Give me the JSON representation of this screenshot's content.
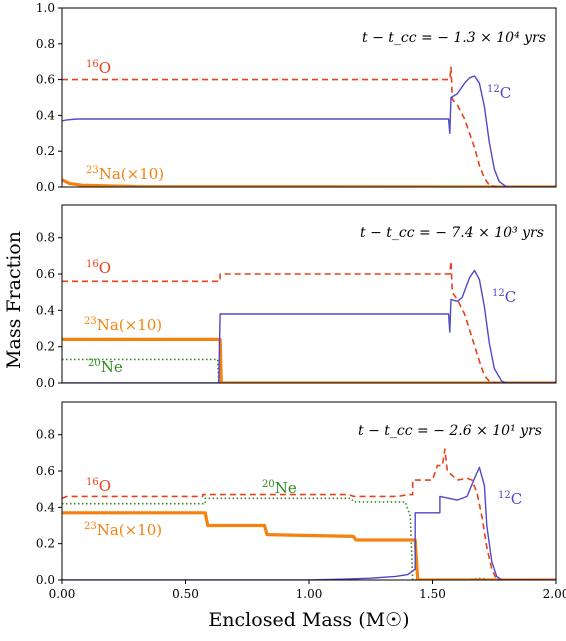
{
  "figure": {
    "ylabel": "Mass Fraction",
    "xlabel": "Enclosed Mass (M☉)"
  },
  "colors": {
    "O16": "#e8411a",
    "C12": "#5148c8",
    "Na23": "#f5820e",
    "Ne20": "#2e8a1e"
  },
  "chart_data": [
    {
      "type": "line",
      "annotation": "t − t_cc = − 1.3 × 10⁴ yrs",
      "xlim": [
        0,
        2.0
      ],
      "ylim": [
        0,
        1.0
      ],
      "yticks": [
        "0.0",
        "0.2",
        "0.4",
        "0.6",
        "0.8",
        "1.0"
      ],
      "grid": false,
      "series": [
        {
          "key": "O16",
          "name": "¹⁶O",
          "style": "dashed",
          "points": [
            [
              0,
              0.6
            ],
            [
              1.57,
              0.6
            ],
            [
              1.575,
              0.67
            ],
            [
              1.58,
              0.49
            ],
            [
              1.6,
              0.46
            ],
            [
              1.63,
              0.38
            ],
            [
              1.65,
              0.3
            ],
            [
              1.67,
              0.22
            ],
            [
              1.69,
              0.12
            ],
            [
              1.71,
              0.05
            ],
            [
              1.73,
              0.01
            ],
            [
              1.76,
              0.0
            ],
            [
              2.0,
              0.0
            ]
          ]
        },
        {
          "key": "C12",
          "name": "¹²C",
          "style": "solid",
          "points": [
            [
              0,
              0.37
            ],
            [
              0.02,
              0.375
            ],
            [
              0.06,
              0.38
            ],
            [
              1.565,
              0.38
            ],
            [
              1.57,
              0.3
            ],
            [
              1.575,
              0.5
            ],
            [
              1.6,
              0.52
            ],
            [
              1.63,
              0.58
            ],
            [
              1.65,
              0.61
            ],
            [
              1.67,
              0.62
            ],
            [
              1.69,
              0.58
            ],
            [
              1.71,
              0.45
            ],
            [
              1.73,
              0.25
            ],
            [
              1.75,
              0.1
            ],
            [
              1.77,
              0.03
            ],
            [
              1.8,
              0.0
            ],
            [
              2.0,
              0.0
            ]
          ]
        },
        {
          "key": "Na23",
          "name": "²³Na(×10)",
          "style": "thick",
          "points": [
            [
              0,
              0.04
            ],
            [
              0.03,
              0.02
            ],
            [
              0.08,
              0.01
            ],
            [
              0.3,
              0.002
            ],
            [
              2.0,
              0.0
            ]
          ]
        }
      ]
    },
    {
      "type": "line",
      "annotation": "t − t_cc = − 7.4 × 10³ yrs",
      "xlim": [
        0,
        2.0
      ],
      "ylim": [
        0,
        0.98
      ],
      "yticks": [
        "0.0",
        "0.2",
        "0.4",
        "0.6",
        "0.8"
      ],
      "grid": false,
      "series": [
        {
          "key": "O16",
          "name": "¹⁶O",
          "style": "dashed",
          "points": [
            [
              0,
              0.56
            ],
            [
              0.64,
              0.56
            ],
            [
              0.64,
              0.6
            ],
            [
              1.57,
              0.6
            ],
            [
              1.575,
              0.67
            ],
            [
              1.58,
              0.5
            ],
            [
              1.6,
              0.46
            ],
            [
              1.63,
              0.38
            ],
            [
              1.66,
              0.25
            ],
            [
              1.69,
              0.12
            ],
            [
              1.71,
              0.04
            ],
            [
              1.73,
              0.01
            ],
            [
              1.76,
              0.0
            ],
            [
              2.0,
              0.0
            ]
          ]
        },
        {
          "key": "C12",
          "name": "¹²C",
          "style": "solid",
          "points": [
            [
              0,
              0.0
            ],
            [
              0.635,
              0.0
            ],
            [
              0.64,
              0.38
            ],
            [
              1.565,
              0.38
            ],
            [
              1.57,
              0.28
            ],
            [
              1.575,
              0.46
            ],
            [
              1.6,
              0.45
            ],
            [
              1.62,
              0.47
            ],
            [
              1.65,
              0.58
            ],
            [
              1.67,
              0.62
            ],
            [
              1.69,
              0.57
            ],
            [
              1.71,
              0.42
            ],
            [
              1.73,
              0.22
            ],
            [
              1.75,
              0.08
            ],
            [
              1.78,
              0.01
            ],
            [
              1.8,
              0.0
            ],
            [
              2.0,
              0.0
            ]
          ]
        },
        {
          "key": "Na23",
          "name": "²³Na(×10)",
          "style": "thick",
          "points": [
            [
              0,
              0.24
            ],
            [
              0.64,
              0.24
            ],
            [
              0.645,
              0.0
            ],
            [
              2.0,
              0.0
            ]
          ]
        },
        {
          "key": "Ne20",
          "name": "²⁰Ne",
          "style": "dotted",
          "points": [
            [
              0,
              0.13
            ],
            [
              0.63,
              0.13
            ],
            [
              0.635,
              0.0
            ],
            [
              2.0,
              0.0
            ]
          ]
        }
      ]
    },
    {
      "type": "line",
      "annotation": "t − t_cc = − 2.6 × 10¹ yrs",
      "xlim": [
        0,
        2.0
      ],
      "ylim": [
        0,
        0.98
      ],
      "xticks": [
        "0.00",
        "0.50",
        "1.00",
        "1.50",
        "2.00"
      ],
      "yticks": [
        "0.0",
        "0.2",
        "0.4",
        "0.6",
        "0.8"
      ],
      "grid": false,
      "series": [
        {
          "key": "O16",
          "name": "¹⁶O",
          "style": "dashed",
          "points": [
            [
              0,
              0.45
            ],
            [
              0.02,
              0.46
            ],
            [
              0.57,
              0.46
            ],
            [
              0.57,
              0.47
            ],
            [
              1.16,
              0.47
            ],
            [
              1.18,
              0.46
            ],
            [
              1.36,
              0.46
            ],
            [
              1.4,
              0.47
            ],
            [
              1.42,
              0.47
            ],
            [
              1.42,
              0.55
            ],
            [
              1.5,
              0.55
            ],
            [
              1.52,
              0.63
            ],
            [
              1.54,
              0.63
            ],
            [
              1.55,
              0.72
            ],
            [
              1.56,
              0.6
            ],
            [
              1.6,
              0.55
            ],
            [
              1.64,
              0.56
            ],
            [
              1.66,
              0.55
            ],
            [
              1.68,
              0.48
            ],
            [
              1.7,
              0.35
            ],
            [
              1.72,
              0.18
            ],
            [
              1.74,
              0.06
            ],
            [
              1.76,
              0.0
            ],
            [
              2.0,
              0.0
            ]
          ]
        },
        {
          "key": "C12",
          "name": "¹²C",
          "style": "solid",
          "points": [
            [
              0,
              0.0
            ],
            [
              1.0,
              0.0
            ],
            [
              1.15,
              0.005
            ],
            [
              1.25,
              0.01
            ],
            [
              1.35,
              0.02
            ],
            [
              1.4,
              0.03
            ],
            [
              1.43,
              0.06
            ],
            [
              1.43,
              0.37
            ],
            [
              1.53,
              0.37
            ],
            [
              1.53,
              0.46
            ],
            [
              1.6,
              0.44
            ],
            [
              1.64,
              0.46
            ],
            [
              1.67,
              0.56
            ],
            [
              1.69,
              0.62
            ],
            [
              1.71,
              0.52
            ],
            [
              1.72,
              0.3
            ],
            [
              1.74,
              0.1
            ],
            [
              1.76,
              0.02
            ],
            [
              1.78,
              0.0
            ],
            [
              2.0,
              0.0
            ]
          ]
        },
        {
          "key": "Na23",
          "name": "²³Na(×10)",
          "style": "thick",
          "points": [
            [
              0,
              0.37
            ],
            [
              0.58,
              0.37
            ],
            [
              0.59,
              0.3
            ],
            [
              0.82,
              0.3
            ],
            [
              0.83,
              0.25
            ],
            [
              1.18,
              0.24
            ],
            [
              1.19,
              0.22
            ],
            [
              1.43,
              0.22
            ],
            [
              1.44,
              0.0
            ],
            [
              2.0,
              0.0
            ]
          ]
        },
        {
          "key": "Ne20",
          "name": "²⁰Ne",
          "style": "dotted",
          "points": [
            [
              0,
              0.42
            ],
            [
              0.58,
              0.42
            ],
            [
              0.58,
              0.45
            ],
            [
              1.17,
              0.45
            ],
            [
              1.18,
              0.43
            ],
            [
              1.39,
              0.43
            ],
            [
              1.41,
              0.35
            ],
            [
              1.42,
              0.0
            ],
            [
              1.62,
              0.0
            ],
            [
              1.7,
              0.01
            ],
            [
              1.73,
              0.0
            ],
            [
              2.0,
              0.0
            ]
          ]
        }
      ]
    }
  ]
}
